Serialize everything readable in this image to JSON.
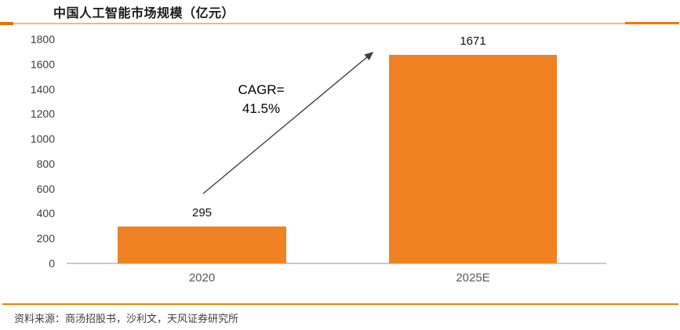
{
  "title": "中国人工智能市场规模（亿元）",
  "source_note": "资料来源：商汤招股书，沙利文，天风证券研究所",
  "annotation": {
    "line1": "CAGR=",
    "line2": "41.5%"
  },
  "chart_data": {
    "type": "bar",
    "title": "中国人工智能市场规模（亿元）",
    "categories": [
      "2020",
      "2025E"
    ],
    "values": [
      295,
      1671
    ],
    "data_labels": [
      "295",
      "1671"
    ],
    "xlabel": "",
    "ylabel": "",
    "ylim": [
      0,
      1800
    ],
    "ytick_step": 200,
    "yticks": [
      1800,
      1600,
      1400,
      1200,
      1000,
      800,
      600,
      400,
      200,
      0
    ],
    "grid": false,
    "legend": "none",
    "annotation": "CAGR= 41.5%"
  },
  "colors": {
    "bar": "#F08223",
    "header_rule_thin": "#F5B97E",
    "header_rule_cap_left": "#E8700A",
    "header_rule_cap_right": "#F07800",
    "footer_rule": "#F28100",
    "axis_line": "#C9C9C9",
    "tick_label": "#404040",
    "category_label": "#595959",
    "arrow": "#3F3F3F"
  }
}
